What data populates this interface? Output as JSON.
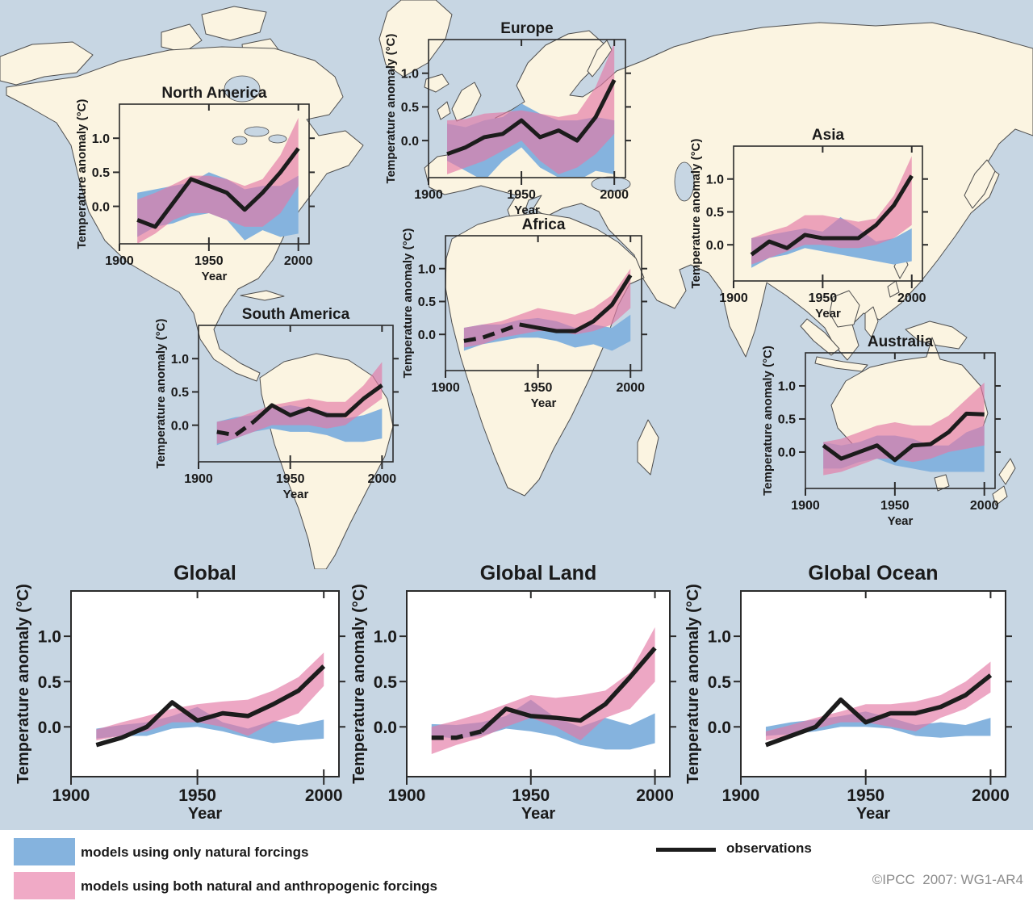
{
  "figure": {
    "credit": "©IPCC  2007: WG1-AR4",
    "legend": {
      "natural_label": "models using only natural forcings",
      "both_label": "models using both natural and anthropogenic forcings",
      "observations_label": "observations"
    },
    "colors": {
      "natural_band": "#85b3de",
      "both_band": "rgba(228,122,165,0.66)",
      "both_band_flat": "#f0aac6",
      "observations": "#1c1c1c",
      "land": "#fbf4e1",
      "ocean": "#c7d6e3",
      "legend_bg": "#ffffff",
      "credit_text": "#8c8c8c"
    },
    "axes": {
      "x_label": "Year",
      "y_label": "Temperature anomaly (°C)",
      "x_ticks": [
        1900,
        1950,
        2000
      ],
      "y_ticks": [
        0.0,
        0.5,
        1.0
      ],
      "x_range": [
        1900,
        2006
      ],
      "y_range": [
        -0.55,
        1.5
      ]
    }
  },
  "chart_data": [
    {
      "id": "north-america",
      "type": "area+line",
      "title": "North America",
      "x": [
        1910,
        1920,
        1930,
        1940,
        1950,
        1960,
        1970,
        1980,
        1990,
        2000
      ],
      "observations": [
        -0.2,
        -0.3,
        0.05,
        0.4,
        0.3,
        0.2,
        -0.05,
        0.2,
        0.5,
        0.85
      ],
      "dashed_until": null,
      "both_band": {
        "lo": [
          -0.55,
          -0.4,
          -0.2,
          -0.1,
          -0.1,
          -0.2,
          -0.3,
          -0.3,
          -0.1,
          0.3
        ],
        "hi": [
          0.1,
          0.2,
          0.32,
          0.45,
          0.45,
          0.4,
          0.3,
          0.4,
          0.75,
          1.3
        ]
      },
      "natural_band": {
        "lo": [
          -0.45,
          -0.3,
          -0.25,
          -0.15,
          -0.1,
          -0.2,
          -0.5,
          -0.35,
          -0.45,
          -0.4
        ],
        "hi": [
          0.2,
          0.25,
          0.3,
          0.35,
          0.5,
          0.4,
          0.25,
          0.3,
          0.3,
          0.45
        ]
      }
    },
    {
      "id": "europe",
      "type": "area+line",
      "title": "Europe",
      "x": [
        1910,
        1920,
        1930,
        1940,
        1950,
        1960,
        1970,
        1980,
        1990,
        2000
      ],
      "observations": [
        -0.2,
        -0.1,
        0.05,
        0.1,
        0.3,
        0.05,
        0.15,
        0.0,
        0.35,
        0.9
      ],
      "dashed_until": null,
      "both_band": {
        "lo": [
          -0.5,
          -0.4,
          -0.3,
          -0.15,
          0.0,
          -0.3,
          -0.5,
          -0.4,
          -0.2,
          0.1
        ],
        "hi": [
          0.3,
          0.32,
          0.4,
          0.42,
          0.45,
          0.4,
          0.35,
          0.4,
          0.8,
          1.45
        ]
      },
      "natural_band": {
        "lo": [
          -0.3,
          -0.45,
          -0.6,
          -0.3,
          -0.1,
          -0.4,
          -0.55,
          -0.6,
          -0.45,
          -0.5
        ],
        "hi": [
          0.25,
          0.2,
          0.3,
          0.35,
          0.55,
          0.4,
          0.3,
          0.3,
          0.35,
          0.3
        ]
      }
    },
    {
      "id": "asia",
      "type": "area+line",
      "title": "Asia",
      "x": [
        1910,
        1920,
        1930,
        1940,
        1950,
        1960,
        1970,
        1980,
        1990,
        2000
      ],
      "observations": [
        -0.15,
        0.05,
        -0.05,
        0.15,
        0.1,
        0.1,
        0.1,
        0.3,
        0.6,
        1.05
      ],
      "dashed_until": null,
      "both_band": {
        "lo": [
          -0.3,
          -0.2,
          -0.1,
          0.0,
          0.0,
          -0.05,
          -0.05,
          0.0,
          0.1,
          0.3
        ],
        "hi": [
          0.1,
          0.2,
          0.28,
          0.45,
          0.45,
          0.4,
          0.35,
          0.4,
          0.75,
          1.35
        ]
      },
      "natural_band": {
        "lo": [
          -0.35,
          -0.2,
          -0.15,
          -0.05,
          -0.1,
          -0.15,
          -0.2,
          -0.25,
          -0.3,
          -0.25
        ],
        "hi": [
          0.1,
          0.15,
          0.2,
          0.25,
          0.2,
          0.42,
          0.25,
          0.05,
          0.1,
          0.25
        ]
      }
    },
    {
      "id": "south-america",
      "type": "area+line",
      "title": "South America",
      "x": [
        1910,
        1920,
        1930,
        1940,
        1950,
        1960,
        1970,
        1980,
        1990,
        2000
      ],
      "observations": [
        -0.1,
        -0.15,
        0.05,
        0.3,
        0.15,
        0.25,
        0.15,
        0.15,
        0.4,
        0.6
      ],
      "dashed_until": 1930,
      "both_band": {
        "lo": [
          -0.28,
          -0.2,
          -0.1,
          0.0,
          0.0,
          0.0,
          -0.05,
          0.0,
          0.2,
          0.4
        ],
        "hi": [
          0.05,
          0.1,
          0.2,
          0.3,
          0.35,
          0.4,
          0.35,
          0.35,
          0.6,
          0.95
        ]
      },
      "natural_band": {
        "lo": [
          -0.3,
          -0.2,
          -0.1,
          -0.05,
          -0.1,
          -0.1,
          -0.15,
          -0.25,
          -0.25,
          -0.2
        ],
        "hi": [
          0.05,
          0.12,
          0.15,
          0.25,
          0.3,
          0.25,
          0.2,
          0.1,
          0.15,
          0.25
        ]
      }
    },
    {
      "id": "africa",
      "type": "area+line",
      "title": "Africa",
      "x": [
        1910,
        1920,
        1930,
        1940,
        1950,
        1960,
        1970,
        1980,
        1990,
        2000
      ],
      "observations": [
        -0.1,
        -0.05,
        0.05,
        0.15,
        0.1,
        0.05,
        0.05,
        0.2,
        0.45,
        0.9
      ],
      "dashed_until": 1940,
      "both_band": {
        "lo": [
          -0.2,
          -0.15,
          -0.05,
          0.0,
          0.05,
          0.05,
          0.0,
          0.05,
          0.15,
          0.4
        ],
        "hi": [
          0.1,
          0.15,
          0.2,
          0.3,
          0.4,
          0.35,
          0.3,
          0.4,
          0.6,
          1.0
        ]
      },
      "natural_band": {
        "lo": [
          -0.25,
          -0.15,
          -0.1,
          -0.05,
          -0.05,
          -0.1,
          -0.2,
          -0.15,
          -0.25,
          -0.1
        ],
        "hi": [
          0.1,
          0.15,
          0.15,
          0.22,
          0.25,
          0.2,
          0.1,
          0.15,
          0.1,
          0.3
        ]
      }
    },
    {
      "id": "australia",
      "type": "area+line",
      "title": "Australia",
      "x": [
        1910,
        1920,
        1930,
        1940,
        1950,
        1960,
        1970,
        1980,
        1990,
        2000
      ],
      "observations": [
        0.1,
        -0.1,
        0.0,
        0.1,
        -0.12,
        0.1,
        0.12,
        0.3,
        0.58,
        0.57
      ],
      "dashed_until": null,
      "both_band": {
        "lo": [
          -0.35,
          -0.3,
          -0.2,
          -0.1,
          -0.1,
          -0.15,
          -0.1,
          0.0,
          0.05,
          0.1
        ],
        "hi": [
          0.15,
          0.2,
          0.3,
          0.4,
          0.45,
          0.4,
          0.4,
          0.55,
          0.8,
          1.05
        ]
      },
      "natural_band": {
        "lo": [
          -0.25,
          -0.25,
          -0.15,
          -0.1,
          -0.2,
          -0.25,
          -0.3,
          -0.3,
          -0.3,
          -0.3
        ],
        "hi": [
          0.15,
          0.1,
          0.15,
          0.25,
          0.25,
          0.2,
          0.1,
          0.1,
          0.3,
          0.4
        ]
      }
    },
    {
      "id": "global",
      "type": "area+line",
      "title": "Global",
      "x": [
        1910,
        1920,
        1930,
        1940,
        1950,
        1960,
        1970,
        1980,
        1990,
        2000
      ],
      "observations": [
        -0.2,
        -0.12,
        0.0,
        0.27,
        0.07,
        0.15,
        0.12,
        0.25,
        0.4,
        0.67
      ],
      "dashed_until": null,
      "both_band": {
        "lo": [
          -0.15,
          -0.1,
          -0.05,
          0.05,
          0.05,
          0.0,
          -0.1,
          0.05,
          0.15,
          0.45
        ],
        "hi": [
          -0.03,
          0.05,
          0.12,
          0.2,
          0.25,
          0.28,
          0.3,
          0.4,
          0.55,
          0.82
        ]
      },
      "natural_band": {
        "lo": [
          -0.13,
          -0.1,
          -0.1,
          -0.02,
          0.0,
          -0.05,
          -0.12,
          -0.18,
          -0.15,
          -0.13
        ],
        "hi": [
          -0.02,
          0.02,
          0.05,
          0.12,
          0.22,
          0.05,
          -0.02,
          0.07,
          0.02,
          0.08
        ]
      }
    },
    {
      "id": "global-land",
      "type": "area+line",
      "title": "Global Land",
      "x": [
        1910,
        1920,
        1930,
        1940,
        1950,
        1960,
        1970,
        1980,
        1990,
        2000
      ],
      "observations": [
        -0.12,
        -0.12,
        -0.05,
        0.2,
        0.12,
        0.1,
        0.07,
        0.25,
        0.55,
        0.87
      ],
      "dashed_until": 1930,
      "both_band": {
        "lo": [
          -0.3,
          -0.2,
          -0.12,
          0.0,
          0.1,
          0.0,
          -0.15,
          0.1,
          0.2,
          0.5
        ],
        "hi": [
          0.0,
          0.07,
          0.15,
          0.25,
          0.35,
          0.32,
          0.35,
          0.4,
          0.6,
          1.1
        ]
      },
      "natural_band": {
        "lo": [
          -0.1,
          -0.13,
          -0.1,
          -0.02,
          -0.05,
          -0.1,
          -0.2,
          -0.25,
          -0.25,
          -0.18
        ],
        "hi": [
          0.03,
          0.02,
          0.05,
          0.12,
          0.3,
          0.1,
          0.0,
          0.1,
          0.02,
          0.15
        ]
      }
    },
    {
      "id": "global-ocean",
      "type": "area+line",
      "title": "Global Ocean",
      "x": [
        1910,
        1920,
        1930,
        1940,
        1950,
        1960,
        1970,
        1980,
        1990,
        2000
      ],
      "observations": [
        -0.2,
        -0.1,
        0.0,
        0.3,
        0.05,
        0.15,
        0.15,
        0.22,
        0.35,
        0.57
      ],
      "dashed_until": null,
      "both_band": {
        "lo": [
          -0.15,
          -0.1,
          -0.02,
          0.05,
          0.05,
          0.0,
          -0.05,
          0.1,
          0.2,
          0.38
        ],
        "hi": [
          -0.05,
          0.02,
          0.1,
          0.17,
          0.25,
          0.25,
          0.28,
          0.35,
          0.5,
          0.72
        ]
      },
      "natural_band": {
        "lo": [
          -0.1,
          -0.08,
          -0.05,
          0.0,
          0.0,
          -0.02,
          -0.1,
          -0.12,
          -0.1,
          -0.1
        ],
        "hi": [
          0.0,
          0.05,
          0.08,
          0.12,
          0.17,
          0.1,
          0.02,
          0.05,
          0.02,
          0.1
        ]
      }
    }
  ]
}
